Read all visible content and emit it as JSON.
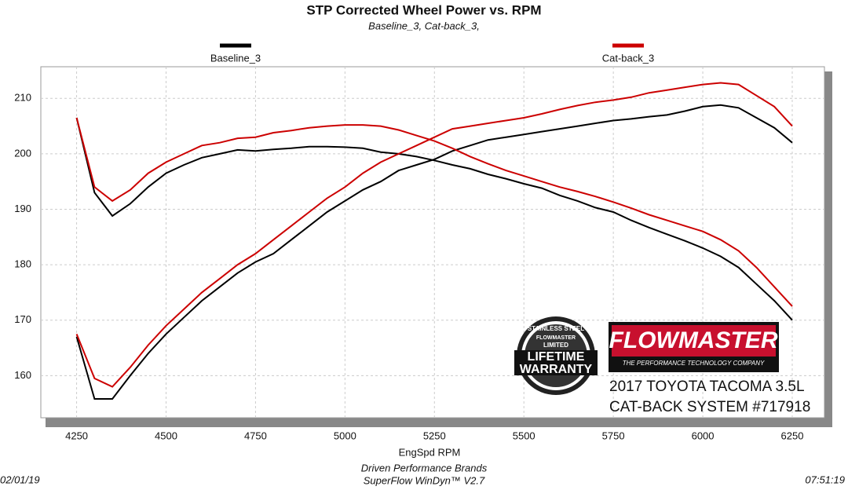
{
  "chart_data": {
    "type": "line",
    "title": "STP Corrected Wheel Power vs. RPM",
    "subtitle": "Baseline_3, Cat-back_3,",
    "x_label": "EngSpd  RPM",
    "x": [
      4250,
      4300,
      4350,
      4400,
      4450,
      4500,
      4550,
      4600,
      4650,
      4700,
      4750,
      4800,
      4850,
      4900,
      4950,
      5000,
      5050,
      5100,
      5150,
      5200,
      5250,
      5300,
      5350,
      5400,
      5450,
      5500,
      5550,
      5600,
      5650,
      5700,
      5750,
      5800,
      5850,
      5900,
      5950,
      6000,
      6050,
      6100,
      6150,
      6200,
      6250
    ],
    "series": [
      {
        "name": "Baseline_3",
        "color": "#000000",
        "lines": [
          [
            167,
            155.8,
            155.8,
            160,
            164,
            167.5,
            170.5,
            173.5,
            176,
            178.5,
            180.5,
            182,
            184.5,
            187,
            189.5,
            191.5,
            193.5,
            195,
            197,
            198,
            199,
            200.5,
            201.5,
            202.5,
            203,
            203.5,
            204,
            204.5,
            205,
            205.5,
            206,
            206.3,
            206.7,
            207,
            207.7,
            208.5,
            208.8,
            208.3,
            206.5,
            204.7,
            202
          ],
          [
            206.5,
            193,
            188.8,
            191,
            194,
            196.5,
            198,
            199.3,
            200,
            200.7,
            200.5,
            200.8,
            201,
            201.3,
            201.3,
            201.2,
            201,
            200.3,
            200,
            199.5,
            198.8,
            198,
            197.3,
            196.3,
            195.5,
            194.6,
            193.8,
            192.5,
            191.5,
            190.3,
            189.5,
            188,
            186.7,
            185.5,
            184.3,
            183,
            181.5,
            179.5,
            176.5,
            173.5,
            170
          ]
        ]
      },
      {
        "name": "Cat-back_3",
        "color": "#cc0000",
        "lines": [
          [
            167.5,
            159.5,
            158,
            161.5,
            165.5,
            169,
            172,
            175,
            177.5,
            180,
            182,
            184.5,
            187,
            189.5,
            192,
            194,
            196.5,
            198.5,
            200,
            201.5,
            203,
            204.5,
            205,
            205.5,
            206,
            206.5,
            207.2,
            208,
            208.7,
            209.3,
            209.7,
            210.2,
            211,
            211.5,
            212,
            212.5,
            212.8,
            212.5,
            210.5,
            208.5,
            205
          ],
          [
            206.5,
            194,
            191.5,
            193.5,
            196.5,
            198.5,
            200,
            201.5,
            202,
            202.8,
            203,
            203.8,
            204.2,
            204.7,
            205,
            205.2,
            205.2,
            205,
            204.3,
            203.3,
            202.3,
            201,
            199.5,
            198.2,
            197,
            196,
            195,
            194,
            193.2,
            192.3,
            191.3,
            190.2,
            189,
            188,
            187,
            186,
            184.5,
            182.5,
            179.5,
            176,
            172.5
          ]
        ]
      }
    ],
    "xlim": [
      4150,
      6340
    ],
    "ylim": [
      152.4,
      215.7
    ],
    "xticks": [
      4250,
      4500,
      4750,
      5000,
      5250,
      5500,
      5750,
      6000,
      6250
    ],
    "yticks": [
      160,
      170,
      180,
      190,
      200,
      210
    ],
    "grid": true,
    "badge": [
      "STAINLESS STEEL",
      "FLOWMASTER",
      "LIMITED",
      "LIFETIME",
      "WARRANTY"
    ],
    "logo": {
      "brand": "FLOWMASTER",
      "tagline": "THE PERFORMANCE TECHNOLOGY COMPANY"
    },
    "caption": [
      "2017 TOYOTA TACOMA 3.5L",
      "CAT-BACK SYSTEM #717918"
    ],
    "footer": {
      "date": "02/01/19",
      "company": "Driven Performance Brands",
      "software": "SuperFlow WinDyn™  V2.7",
      "time": "07:51:19"
    }
  }
}
